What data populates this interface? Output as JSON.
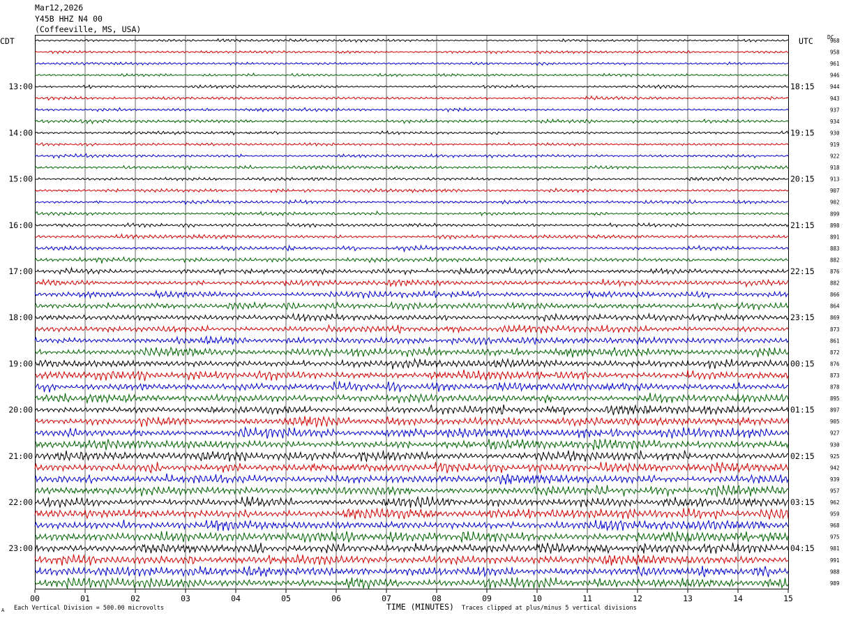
{
  "header": {
    "date": "Mar12,2026",
    "station": "Y45B HHZ N4 00",
    "location": "(Coffeeville, MS, USA)"
  },
  "axis": {
    "left_label": "CDT",
    "right_label": "UTC",
    "dc_label": "DC",
    "x_title": "TIME (MINUTES)",
    "x_ticks": [
      "00",
      "01",
      "02",
      "03",
      "04",
      "05",
      "06",
      "07",
      "08",
      "09",
      "10",
      "11",
      "12",
      "13",
      "14",
      "15"
    ]
  },
  "footer": {
    "scale": "Each Vertical Division =  500.00 microvolts",
    "clip": "Traces clipped at plus/minus 5 vertical divisions",
    "corner": "A"
  },
  "colors": {
    "trace_cycle": [
      "#000000",
      "#d00000",
      "#0000cc",
      "#006400"
    ]
  },
  "chart_data": {
    "type": "line",
    "title": "Y45B HHZ N4 00",
    "xlabel": "TIME (MINUTES)",
    "xlim": [
      0,
      15
    ],
    "traces_per_hour": 4,
    "left_hour_labels": [
      "",
      "13:00",
      "14:00",
      "15:00",
      "16:00",
      "17:00",
      "18:00",
      "19:00",
      "20:00",
      "21:00",
      "22:00",
      "23:00"
    ],
    "right_hour_labels": [
      "",
      "18:15",
      "19:15",
      "20:15",
      "21:15",
      "22:15",
      "23:15",
      "00:15",
      "01:15",
      "02:15",
      "03:15",
      "04:15"
    ],
    "dc_offsets": [
      968,
      958,
      961,
      946,
      944,
      943,
      937,
      934,
      930,
      919,
      922,
      918,
      913,
      907,
      902,
      899,
      898,
      891,
      883,
      882,
      876,
      882,
      866,
      864,
      869,
      873,
      861,
      872,
      876,
      873,
      878,
      895,
      897,
      905,
      927,
      930,
      925,
      942,
      939,
      957,
      962,
      959,
      968,
      975,
      981,
      991,
      988,
      989
    ],
    "amplitude_level": [
      0.8,
      0.8,
      0.8,
      0.8,
      0.9,
      0.9,
      0.9,
      1.0,
      0.9,
      0.9,
      1.0,
      1.0,
      1.0,
      1.0,
      1.0,
      1.0,
      1.1,
      1.2,
      1.3,
      1.4,
      1.5,
      1.7,
      1.9,
      2.1,
      2.1,
      2.2,
      2.3,
      2.4,
      2.5,
      2.6,
      2.6,
      2.7,
      2.7,
      2.8,
      2.8,
      2.9,
      2.9,
      3.0,
      3.0,
      3.0,
      3.0,
      3.1,
      3.1,
      3.1,
      3.1,
      3.2,
      3.2,
      3.2
    ]
  }
}
